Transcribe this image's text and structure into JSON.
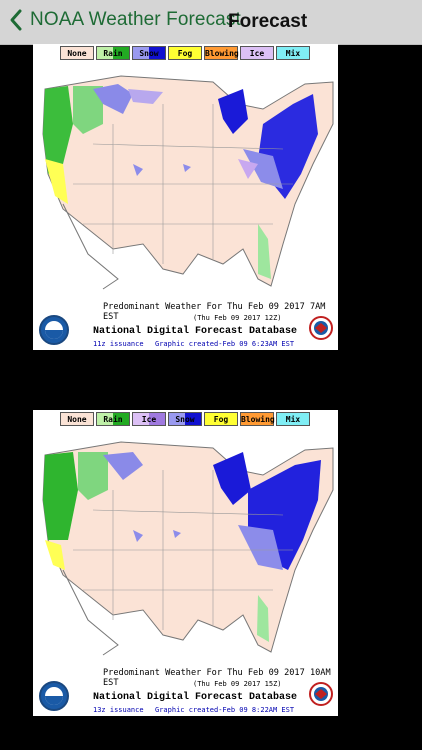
{
  "nav": {
    "back_label": "NOAA Weather Forecast",
    "title": "Forecast"
  },
  "maps": [
    {
      "legend": [
        {
          "label": "None",
          "color": "#fbe3d6"
        },
        {
          "label": "Rain",
          "color": "#4fc84f"
        },
        {
          "label": "Snow",
          "color": "#3a3ae0"
        },
        {
          "label": "Fog",
          "color": "#ffff33"
        },
        {
          "label": "Blowing",
          "color": "#ff9a33"
        },
        {
          "label": "Ice",
          "color": "#c8a8f0"
        },
        {
          "label": "Mix",
          "color": "#66e6f0"
        }
      ],
      "caption": "Predominant Weather For Thu Feb 09 2017  7AM EST",
      "subcaption": "(Thu Feb 09 2017 12Z)",
      "database": "National Digital Forecast Database",
      "issuance": "11z issuance",
      "created": "Graphic created-Feb 09  6:23AM EST"
    },
    {
      "legend": [
        {
          "label": "None",
          "color": "#fbe3d6"
        },
        {
          "label": "Rain",
          "color": "#4fc84f"
        },
        {
          "label": "Ice",
          "color": "#c8a8f0"
        },
        {
          "label": "Snow",
          "color": "#3a3ae0"
        },
        {
          "label": "Fog",
          "color": "#ffff33"
        },
        {
          "label": "Blowing",
          "color": "#ff9a33"
        },
        {
          "label": "Mix",
          "color": "#66e6f0"
        }
      ],
      "caption": "Predominant Weather For Thu Feb 09 2017 10AM EST",
      "subcaption": "(Thu Feb 09 2017 15Z)",
      "database": "National Digital Forecast Database",
      "issuance": "13z issuance",
      "created": "Graphic created-Feb 09  8:22AM EST"
    }
  ]
}
